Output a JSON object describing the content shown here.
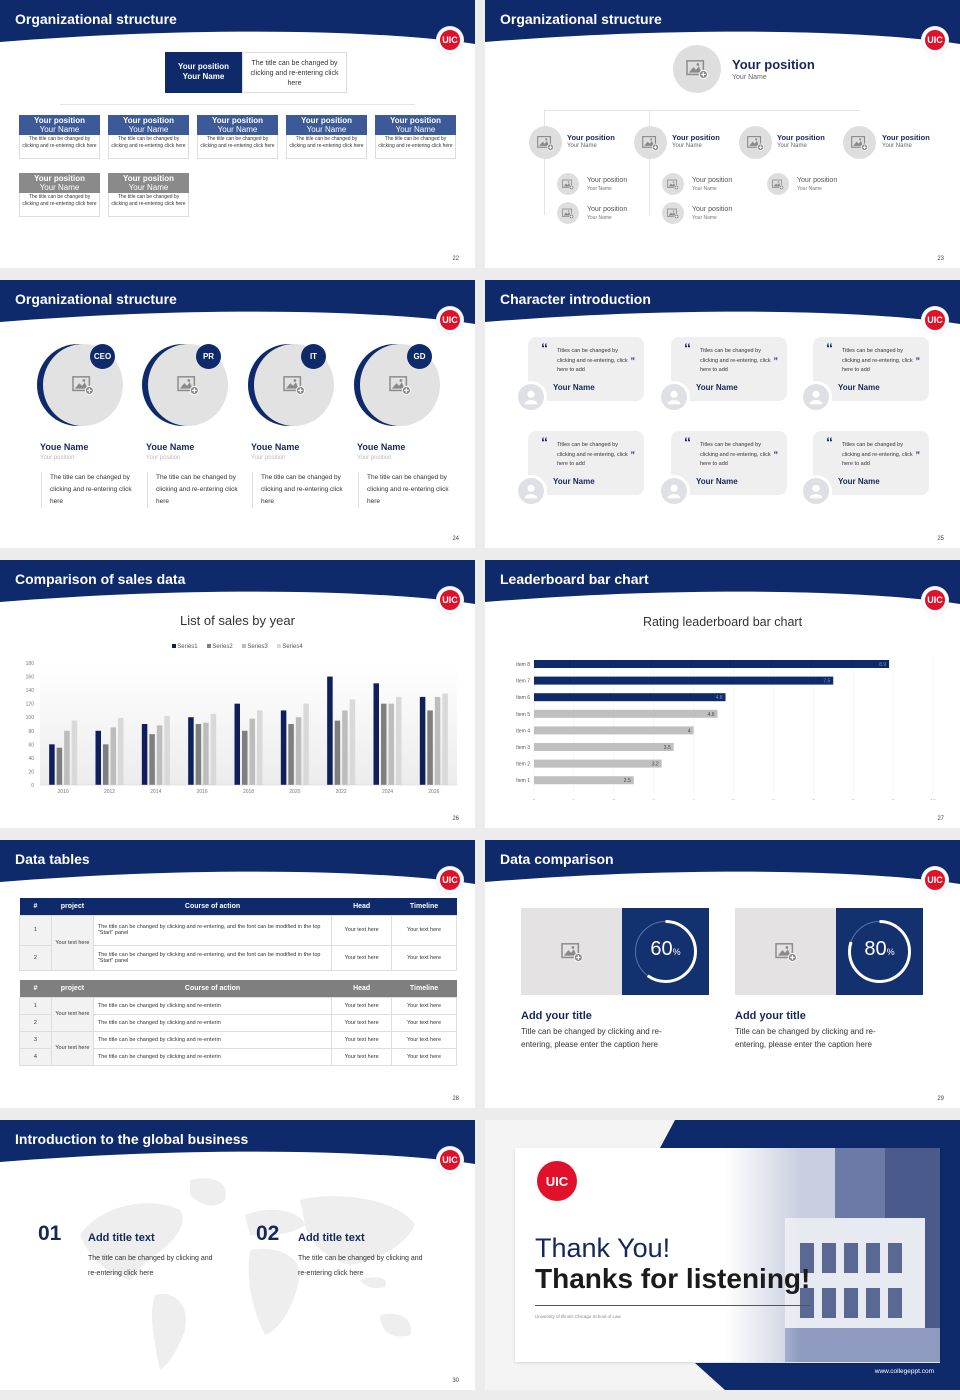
{
  "brand": {
    "logo_text": "UIC",
    "primary": "#0e2a6b",
    "accent": "#e2112b",
    "gray": "#8a8a8a"
  },
  "slides": {
    "s22": {
      "title": "Organizational structure",
      "page": "22",
      "top": {
        "position": "Your position",
        "name": "Your Name",
        "desc": "The title can be changed by clicking and re-entering click here"
      },
      "row1": [
        {
          "position": "Your position",
          "name": "Your Name",
          "desc": "The title can be changed by clicking and re-entering click here"
        },
        {
          "position": "Your position",
          "name": "Your Name",
          "desc": "The title can be changed by clicking and re-entering click here"
        },
        {
          "position": "Your position",
          "name": "Your Name",
          "desc": "The title can be changed by clicking and re-entering click here"
        },
        {
          "position": "Your position",
          "name": "Your Name",
          "desc": "The title can be changed by clicking and re-entering click here"
        },
        {
          "position": "Your position",
          "name": "Your Name",
          "desc": "The title can be changed by clicking and re-entering click here"
        }
      ],
      "row2": [
        {
          "position": "Your position",
          "name": "Your Name",
          "desc": "The title can be changed by clicking and re-entering click here"
        },
        {
          "position": "Your position",
          "name": "Your Name",
          "desc": "The title can be changed by clicking and re-entering click here"
        }
      ]
    },
    "s23": {
      "title": "Organizational structure",
      "page": "23",
      "top": {
        "position": "Your position",
        "name": "Your Name"
      },
      "level2": [
        {
          "position": "Your position",
          "name": "Your Name"
        },
        {
          "position": "Your position",
          "name": "Your Name"
        },
        {
          "position": "Your position",
          "name": "Your Name"
        },
        {
          "position": "Your position",
          "name": "Your Name"
        }
      ],
      "level3": [
        {
          "position": "Your position",
          "name": "Your Name"
        },
        {
          "position": "Your position",
          "name": "Your Name"
        },
        {
          "position": "Your position",
          "name": "Your Name"
        },
        {
          "position": "Your position",
          "name": "Your Name"
        },
        {
          "position": "Your position",
          "name": "Your Name"
        }
      ]
    },
    "s24": {
      "title": "Organizational structure",
      "page": "24",
      "people": [
        {
          "badge": "CEO",
          "name": "Youe Name",
          "position": "Your position",
          "desc": "The title can be changed by clicking and re-entering click here"
        },
        {
          "badge": "PR",
          "name": "Youe Name",
          "position": "Your position",
          "desc": "The title can be changed by clicking and re-entering click here"
        },
        {
          "badge": "IT",
          "name": "Youe Name",
          "position": "Your position",
          "desc": "The title can be changed by clicking and re-entering click here"
        },
        {
          "badge": "GD",
          "name": "Youe Name",
          "position": "Your position",
          "desc": "The title can be changed by clicking and re-entering click here"
        }
      ]
    },
    "s25": {
      "title": "Character introduction",
      "page": "25",
      "quotes": [
        {
          "text": "Titles can be changed by clicking and re-entering, click here to add",
          "name": "Your Name"
        },
        {
          "text": "Titles can be changed by clicking and re-entering, click here to add",
          "name": "Your Name"
        },
        {
          "text": "Titles can be changed by clicking and re-entering, click here to add",
          "name": "Your Name"
        },
        {
          "text": "Titles can be changed by clicking and re-entering, click here to add",
          "name": "Your Name"
        },
        {
          "text": "Titles can be changed by clicking and re-entering, click here to add",
          "name": "Your Name"
        },
        {
          "text": "Titles can be changed by clicking and re-entering, click here to add",
          "name": "Your Name"
        }
      ],
      "open_quote": "“",
      "close_quote": "”"
    },
    "s26": {
      "title": "Comparison of sales data",
      "page": "26"
    },
    "s27": {
      "title": "Leaderboard bar chart",
      "page": "27"
    },
    "s28": {
      "title": "Data tables",
      "page": "28",
      "table1": {
        "headers": [
          "#",
          "project",
          "Course of action",
          "Head",
          "Timeline"
        ],
        "project": "Your text here",
        "rows": [
          {
            "n": "1",
            "action": "The title can be changed by clicking and re-entering, and the font can be modified in the top \"Start\" panel",
            "head": "Your text here",
            "timeline": "Your text here"
          },
          {
            "n": "2",
            "action": "The title can be changed by clicking and re-entering, and the font can be modified in the top \"Start\" panel",
            "head": "Your text here",
            "timeline": "Your text here"
          }
        ]
      },
      "table2": {
        "headers": [
          "#",
          "project",
          "Course of action",
          "Head",
          "Timeline"
        ],
        "projects": [
          "Your text here",
          "Your text here"
        ],
        "rows": [
          {
            "n": "1",
            "action": "The title can be changed by clicking and re-enterin",
            "head": "Your text here",
            "timeline": "Your text here"
          },
          {
            "n": "2",
            "action": "The title can be changed by clicking and re-enterin",
            "head": "Your text here",
            "timeline": "Your text here"
          },
          {
            "n": "3",
            "action": "The title can be changed by clicking and re-enterin",
            "head": "Your text here",
            "timeline": "Your text here"
          },
          {
            "n": "4",
            "action": "The title can be changed by clicking and re-enterin",
            "head": "Your text here",
            "timeline": "Your text here"
          }
        ]
      }
    },
    "s29": {
      "title": "Data comparison",
      "page": "29",
      "items": [
        {
          "value": "60",
          "unit": "%",
          "pct": 60,
          "title": "Add your title",
          "text": "Title can be changed by clicking and re-entering, please enter the caption here"
        },
        {
          "value": "80",
          "unit": "%",
          "pct": 80,
          "title": "Add your title",
          "text": "Title can be changed by clicking and re-entering, please enter the caption here"
        }
      ]
    },
    "s30": {
      "title": "Introduction to the global business",
      "page": "30",
      "items": [
        {
          "num": "01",
          "title": "Add title text",
          "text": "The title can be changed by clicking and re-entering click here"
        },
        {
          "num": "02",
          "title": "Add title text",
          "text": "The title can be changed by clicking and re-entering click here"
        }
      ]
    },
    "s31": {
      "line1": "Thank You!",
      "line2": "Thanks for listening!",
      "subtitle": "University of Illinois Chicago School of Law",
      "url": "www.collegeppt.com"
    }
  },
  "chart_data": [
    {
      "type": "bar",
      "title": "List of sales by year",
      "categories": [
        "2010",
        "2012",
        "2014",
        "2016",
        "2018",
        "2020",
        "2022",
        "2024",
        "2026"
      ],
      "series": [
        {
          "name": "Series1",
          "color": "#0e1f5c",
          "values": [
            60,
            80,
            90,
            100,
            120,
            110,
            160,
            150,
            130
          ]
        },
        {
          "name": "Series2",
          "color": "#7f7f7f",
          "values": [
            55,
            60,
            75,
            90,
            80,
            90,
            95,
            120,
            110
          ]
        },
        {
          "name": "Series3",
          "color": "#bdbdbd",
          "values": [
            80,
            85,
            88,
            92,
            98,
            100,
            110,
            120,
            130
          ]
        },
        {
          "name": "Series4",
          "color": "#d9d9d9",
          "values": [
            95,
            99,
            102,
            105,
            110,
            120,
            126,
            130,
            135
          ]
        }
      ],
      "yticks": [
        "0",
        "20",
        "40",
        "60",
        "80",
        "100",
        "120",
        "140",
        "160",
        "180"
      ],
      "ylim": [
        0,
        180
      ],
      "legend_position": "top",
      "grid": false,
      "xlabel": "",
      "ylabel": ""
    },
    {
      "type": "bar",
      "orientation": "horizontal",
      "title": "Rating leaderboard bar chart",
      "categories": [
        "Item 8",
        "Item 7",
        "Item 6",
        "Item 5",
        "Item 4",
        "Item 3",
        "Item 2",
        "Item 1"
      ],
      "values": [
        8.9,
        7.5,
        4.8,
        4.6,
        4,
        3.5,
        3.2,
        2.5
      ],
      "labels": [
        "8.9",
        "7.5",
        "4.8",
        "4.6",
        "4",
        "3.5",
        "3.2",
        "2.5"
      ],
      "highlight": [
        true,
        true,
        true,
        false,
        false,
        false,
        false,
        false
      ],
      "xticks": [
        "0",
        "1",
        "2",
        "3",
        "4",
        "5",
        "6",
        "7",
        "8",
        "9",
        "10"
      ],
      "xlim": [
        0,
        10
      ],
      "grid": true,
      "xlabel": "",
      "ylabel": ""
    }
  ]
}
